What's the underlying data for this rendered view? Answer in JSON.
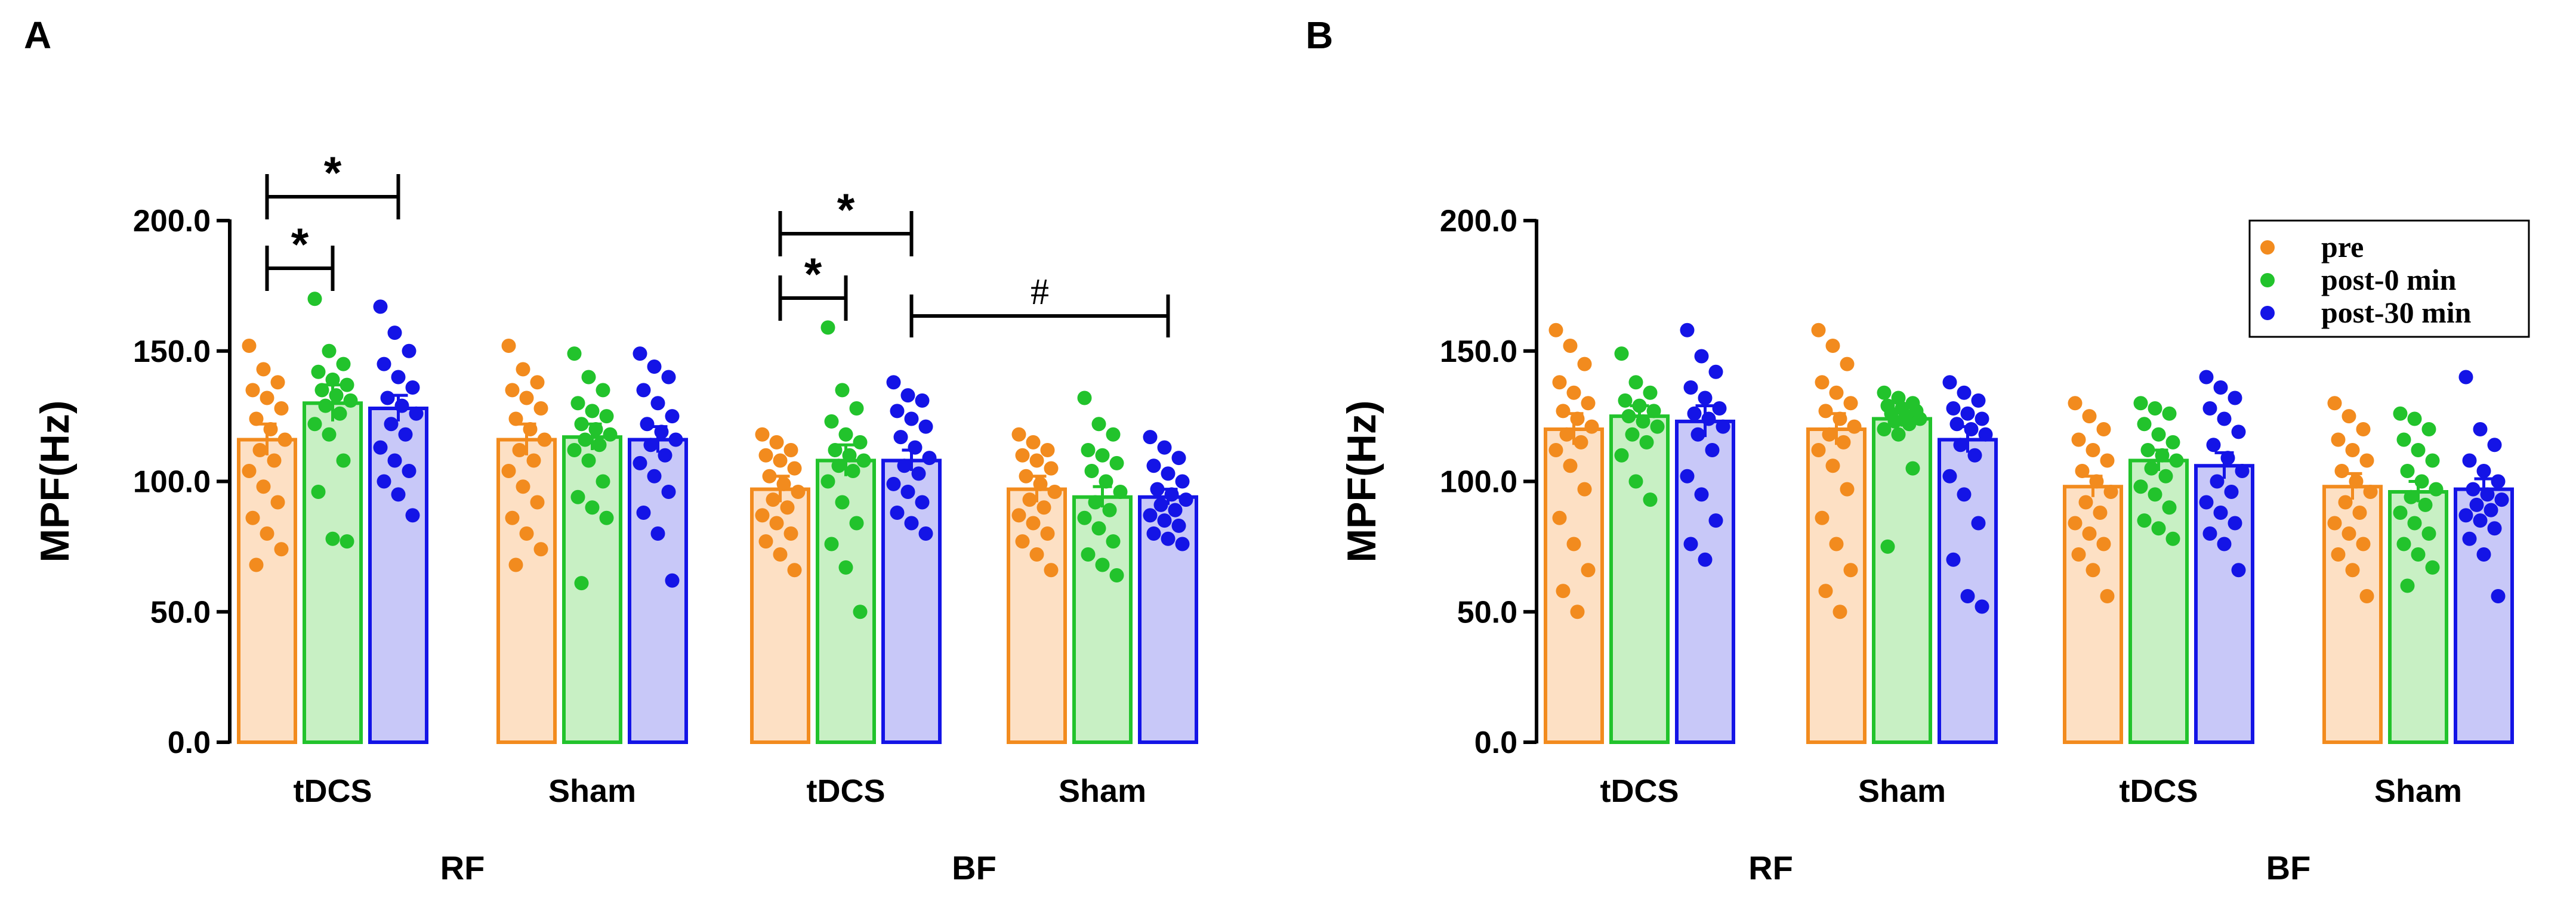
{
  "panels": [
    {
      "letter": "A",
      "chart_data": {
        "type": "bar",
        "title": "",
        "xlabel": "",
        "ylabel": "MPF(Hz)",
        "ylim": [
          0,
          200
        ],
        "yticks": [
          "0.0",
          "50.0",
          "100.0",
          "150.0",
          "200.0"
        ],
        "groups": [
          {
            "label": "RF",
            "subgroups": [
              "tDCS",
              "Sham"
            ]
          },
          {
            "label": "BF",
            "subgroups": [
              "tDCS",
              "Sham"
            ]
          }
        ],
        "categories": [
          "tDCS",
          "Sham",
          "tDCS",
          "Sham"
        ],
        "series": [
          {
            "name": "pre",
            "values": [
              116,
              116,
              97,
              97
            ],
            "points": [
              [
                152,
                143,
                138,
                135,
                132,
                128,
                124,
                120,
                116,
                112,
                108,
                104,
                98,
                92,
                86,
                80,
                74,
                68
              ],
              [
                152,
                143,
                138,
                135,
                132,
                128,
                124,
                120,
                116,
                112,
                108,
                104,
                98,
                92,
                86,
                80,
                74,
                68
              ],
              [
                118,
                115,
                112,
                110,
                108,
                105,
                102,
                99,
                96,
                93,
                90,
                87,
                84,
                80,
                77,
                72,
                66
              ],
              [
                118,
                115,
                112,
                110,
                108,
                105,
                102,
                99,
                96,
                93,
                90,
                87,
                84,
                80,
                77,
                72,
                66
              ]
            ]
          },
          {
            "name": "post-0 min",
            "values": [
              130,
              117,
              108,
              94
            ],
            "points": [
              [
                170,
                150,
                145,
                142,
                139,
                137,
                135,
                133,
                131,
                129,
                126,
                122,
                118,
                108,
                96,
                78,
                77
              ],
              [
                149,
                140,
                135,
                130,
                127,
                125,
                122,
                120,
                118,
                116,
                114,
                112,
                108,
                100,
                94,
                90,
                86,
                61
              ],
              [
                159,
                135,
                128,
                123,
                118,
                115,
                112,
                110,
                108,
                106,
                104,
                100,
                92,
                84,
                76,
                67,
                50
              ],
              [
                132,
                122,
                118,
                112,
                110,
                107,
                104,
                100,
                96,
                92,
                89,
                86,
                82,
                77,
                72,
                68,
                64
              ]
            ]
          },
          {
            "name": "post-30 min",
            "values": [
              128,
              116,
              108,
              94
            ],
            "points": [
              [
                167,
                157,
                150,
                145,
                140,
                136,
                132,
                129,
                126,
                122,
                118,
                113,
                108,
                104,
                100,
                95,
                87
              ],
              [
                149,
                144,
                140,
                135,
                130,
                125,
                122,
                119,
                116,
                114,
                110,
                107,
                102,
                96,
                88,
                80,
                62
              ],
              [
                138,
                133,
                131,
                127,
                124,
                121,
                117,
                113,
                109,
                106,
                103,
                99,
                96,
                92,
                88,
                84,
                80
              ],
              [
                117,
                113,
                109,
                106,
                103,
                100,
                97,
                95,
                93,
                91,
                89,
                87,
                85,
                83,
                80,
                78,
                76
              ]
            ]
          }
        ],
        "error": [
          [
            6,
            6,
            5,
            5
          ],
          [
            7,
            5,
            6,
            4
          ],
          [
            5,
            5,
            4,
            3
          ]
        ],
        "annotations": [
          {
            "text": "*",
            "from": [
              0,
              0
            ],
            "to": [
              0,
              1
            ]
          },
          {
            "text": "*",
            "from": [
              0,
              0
            ],
            "to": [
              0,
              2
            ]
          },
          {
            "text": "*",
            "from": [
              2,
              0
            ],
            "to": [
              2,
              1
            ]
          },
          {
            "text": "*",
            "from": [
              2,
              0
            ],
            "to": [
              2,
              2
            ]
          },
          {
            "text": "#",
            "from": [
              2,
              2
            ],
            "to": [
              3,
              2
            ]
          }
        ],
        "legend": null
      }
    },
    {
      "letter": "B",
      "chart_data": {
        "type": "bar",
        "title": "",
        "xlabel": "",
        "ylabel": "MPF(Hz)",
        "ylim": [
          0,
          200
        ],
        "yticks": [
          "0.0",
          "50.0",
          "100.0",
          "150.0",
          "200.0"
        ],
        "groups": [
          {
            "label": "RF",
            "subgroups": [
              "tDCS",
              "Sham"
            ]
          },
          {
            "label": "BF",
            "subgroups": [
              "tDCS",
              "Sham"
            ]
          }
        ],
        "categories": [
          "tDCS",
          "Sham",
          "tDCS",
          "Sham"
        ],
        "series": [
          {
            "name": "pre",
            "values": [
              120,
              120,
              98,
              98
            ],
            "points": [
              [
                158,
                152,
                145,
                138,
                134,
                130,
                127,
                124,
                121,
                118,
                115,
                112,
                106,
                97,
                86,
                76,
                66,
                58,
                50
              ],
              [
                158,
                152,
                145,
                138,
                134,
                130,
                127,
                124,
                121,
                118,
                115,
                112,
                106,
                97,
                86,
                76,
                66,
                58,
                50
              ],
              [
                130,
                125,
                120,
                116,
                112,
                108,
                104,
                100,
                96,
                92,
                88,
                84,
                80,
                76,
                72,
                66,
                56
              ],
              [
                130,
                125,
                120,
                116,
                112,
                108,
                104,
                100,
                96,
                92,
                88,
                84,
                80,
                76,
                72,
                66,
                56
              ]
            ]
          },
          {
            "name": "post-0 min",
            "values": [
              125,
              124,
              108,
              96
            ],
            "points": [
              [
                149,
                138,
                134,
                131,
                129,
                127,
                125,
                123,
                121,
                118,
                115,
                110,
                100,
                93
              ],
              [
                134,
                132,
                130,
                129,
                128,
                127,
                126,
                125,
                124,
                123,
                122,
                120,
                118,
                105,
                75
              ],
              [
                130,
                128,
                126,
                122,
                118,
                115,
                112,
                110,
                108,
                105,
                102,
                98,
                95,
                90,
                85,
                82,
                78
              ],
              [
                126,
                124,
                120,
                116,
                112,
                108,
                104,
                100,
                97,
                94,
                91,
                88,
                84,
                80,
                76,
                72,
                67,
                60
              ]
            ]
          },
          {
            "name": "post-30 min",
            "values": [
              123,
              116,
              106,
              97
            ],
            "points": [
              [
                158,
                148,
                142,
                136,
                132,
                128,
                126,
                124,
                121,
                118,
                112,
                102,
                95,
                85,
                76,
                70
              ],
              [
                138,
                134,
                131,
                128,
                126,
                124,
                122,
                120,
                118,
                114,
                110,
                102,
                95,
                84,
                70,
                56,
                52
              ],
              [
                140,
                136,
                132,
                128,
                124,
                119,
                114,
                109,
                104,
                100,
                96,
                92,
                88,
                84,
                80,
                76,
                66
              ],
              [
                140,
                120,
                114,
                108,
                104,
                100,
                97,
                95,
                93,
                91,
                89,
                87,
                85,
                82,
                78,
                72,
                56
              ]
            ]
          }
        ],
        "error": [
          [
            6,
            6,
            4,
            5
          ],
          [
            4,
            3,
            4,
            4
          ],
          [
            6,
            5,
            5,
            4
          ]
        ],
        "annotations": [],
        "legend": {
          "position": "top-right",
          "entries": [
            "pre",
            "post-0 min",
            "post-30 min"
          ]
        }
      }
    }
  ],
  "colors": {
    "pre": {
      "dot": "#f28b1e",
      "fill": "#fde0c4",
      "edge": "#f28b1e"
    },
    "post-0 min": {
      "dot": "#22c32c",
      "fill": "#c8f0c4",
      "edge": "#22c32c"
    },
    "post-30 min": {
      "dot": "#1414e6",
      "fill": "#c8c8f8",
      "edge": "#1414e6"
    }
  }
}
